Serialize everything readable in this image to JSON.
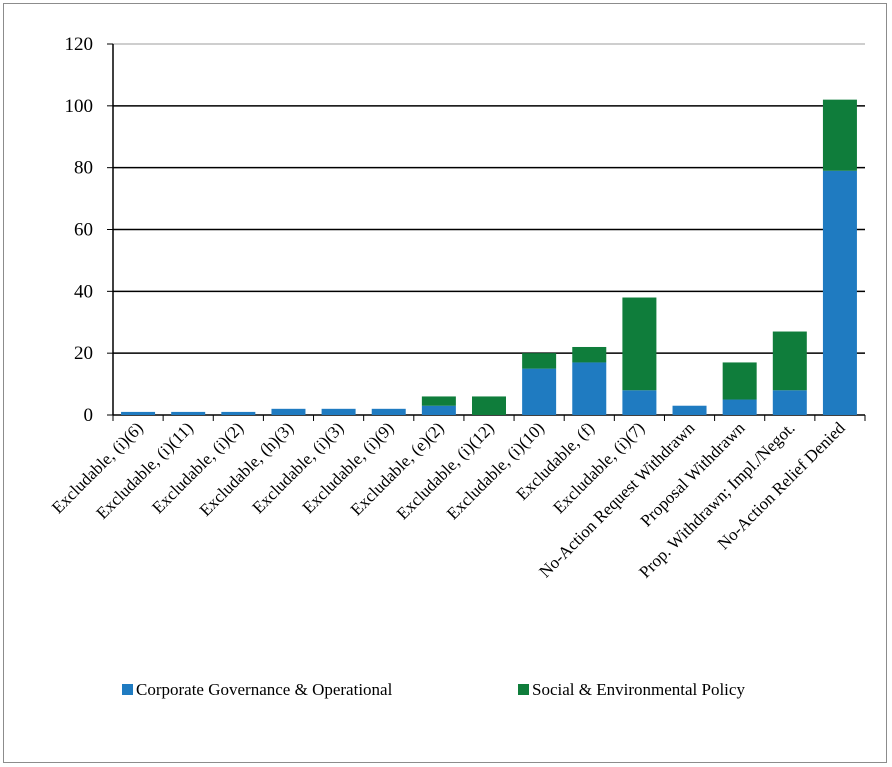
{
  "chart_data": {
    "type": "bar",
    "stacked": true,
    "title": "",
    "xlabel": "",
    "ylabel": "",
    "ylim": [
      0,
      120
    ],
    "yticks": [
      0,
      20,
      40,
      60,
      80,
      100,
      120
    ],
    "grid": true,
    "legend_position": "bottom",
    "categories": [
      "Excludable, (i)(6)",
      "Excludable, (i)(11)",
      "Excludable, (i)(2)",
      "Excludable, (h)(3)",
      "Excludable, (i)(3)",
      "Excludable, (i)(9)",
      "Excludable, (e)(2)",
      "Excludable, (i)(12)",
      "Excludable, (i)(10)",
      "Excludable, (f)",
      "Excludable, (i)(7)",
      "No-Action Request Withdrawn",
      "Proposal Withdrawn",
      "Prop. Withdrawn; Impl./Negot.",
      "No-Action Relief Denied"
    ],
    "series": [
      {
        "name": "Corporate Governance & Operational",
        "color": "#1f7bc1",
        "values": [
          1,
          1,
          1,
          2,
          2,
          2,
          3,
          0,
          15,
          17,
          8,
          3,
          5,
          8,
          79
        ]
      },
      {
        "name": "Social & Environmental Policy",
        "color": "#0f7d3b",
        "values": [
          0,
          0,
          0,
          0,
          0,
          0,
          3,
          6,
          5,
          5,
          30,
          0,
          12,
          19,
          23
        ]
      }
    ]
  }
}
